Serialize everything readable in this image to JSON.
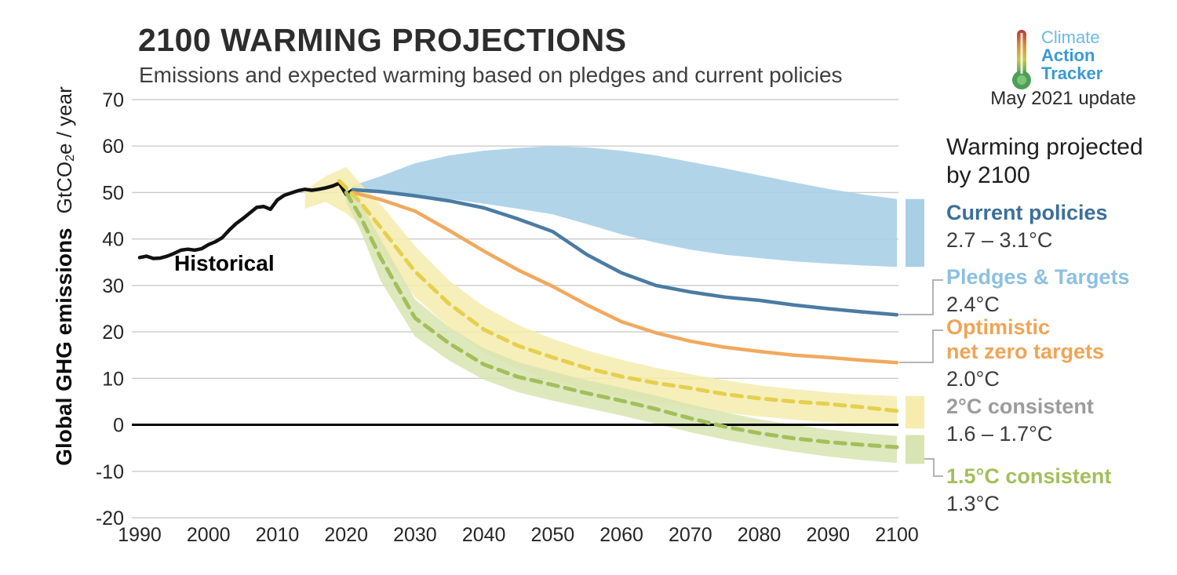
{
  "header": {
    "title": "2100 WARMING PROJECTIONS",
    "subtitle": "Emissions and expected warming based on pledges and current policies"
  },
  "logo": {
    "line1": "Climate",
    "line2": "Action",
    "line3": "Tracker",
    "line1_color": "#6cb9e6",
    "line23_color": "#3a9ad5",
    "update": "May 2021 update"
  },
  "axes": {
    "y_label_bold": "Global GHG emissions",
    "y_unit_pre": "GtCO",
    "y_unit_sub": "2",
    "y_unit_post": "e / year"
  },
  "annotations": {
    "historical": "Historical"
  },
  "legend": {
    "title": "Warming projected by 2100",
    "entries": [
      {
        "label": "Current policies",
        "value": "2.7 – 3.1°C",
        "color": "#3d6f99"
      },
      {
        "label": "Pledges & Targets",
        "value": "2.4°C",
        "color": "#8cc0e0"
      },
      {
        "label": "Optimistic net zero targets",
        "label_line1": "Optimistic",
        "label_line2": "net zero targets",
        "value": "2.0°C",
        "color": "#f0a455"
      },
      {
        "label": "2°C consistent",
        "value": "1.6 – 1.7°C",
        "color": "#9c9c9c"
      },
      {
        "label": "1.5°C consistent",
        "value": "1.3°C",
        "color": "#a3bf5b"
      }
    ]
  },
  "chart_data": {
    "type": "line",
    "title": "2100 WARMING PROJECTIONS",
    "subtitle": "Emissions and expected warming based on pledges and current policies",
    "xlabel": "",
    "ylabel": "Global GHG emissions GtCO2e / year",
    "xlim": [
      1990,
      2100
    ],
    "ylim": [
      -20,
      70
    ],
    "x_ticks": [
      1990,
      2000,
      2010,
      2020,
      2030,
      2040,
      2050,
      2060,
      2070,
      2080,
      2090,
      2100
    ],
    "y_ticks": [
      -20,
      -10,
      0,
      10,
      20,
      30,
      40,
      50,
      60,
      70
    ],
    "grid": true,
    "zero_line": true,
    "legend_position": "right",
    "bands": [
      {
        "name": "Current policies range",
        "color": "#a9cfe5",
        "opacity": 0.9,
        "x": [
          2021,
          2025,
          2030,
          2035,
          2040,
          2045,
          2050,
          2055,
          2060,
          2065,
          2070,
          2075,
          2080,
          2085,
          2090,
          2095,
          2100
        ],
        "upper": [
          51.5,
          53.5,
          56.3,
          58,
          59,
          59.6,
          60,
          59.7,
          59,
          58,
          56.6,
          55.2,
          53.7,
          52.2,
          50.8,
          49.6,
          48.6
        ],
        "lower": [
          50,
          50,
          49.4,
          48.6,
          47.6,
          46.5,
          45.3,
          43.2,
          41,
          39.2,
          37.7,
          36.6,
          35.9,
          35.2,
          34.7,
          34.3,
          34
        ]
      },
      {
        "name": "2°C consistent range",
        "color": "#f5ecae",
        "opacity": 0.85,
        "x": [
          2014,
          2017,
          2020,
          2022,
          2025,
          2030,
          2035,
          2040,
          2045,
          2050,
          2055,
          2060,
          2065,
          2070,
          2075,
          2080,
          2085,
          2090,
          2095,
          2100
        ],
        "upper": [
          50.5,
          53.5,
          55.5,
          52,
          47.5,
          38.5,
          31,
          25.5,
          21.5,
          18.5,
          16,
          14,
          12.3,
          10.9,
          9.6,
          8.5,
          7.7,
          7,
          6.5,
          6.2
        ],
        "lower": [
          46.5,
          48,
          45.5,
          43,
          37,
          27.5,
          21,
          15.5,
          12,
          9.5,
          7.6,
          6,
          4.7,
          3.6,
          2.6,
          1.8,
          1.1,
          0.5,
          0,
          -0.4
        ]
      },
      {
        "name": "1.5°C consistent range",
        "color": "#d8e4b2",
        "opacity": 0.85,
        "x": [
          2020,
          2022,
          2025,
          2030,
          2035,
          2040,
          2045,
          2050,
          2055,
          2060,
          2065,
          2070,
          2075,
          2080,
          2085,
          2090,
          2095,
          2100
        ],
        "upper": [
          51,
          48,
          40,
          27,
          21,
          16.5,
          13.5,
          11.5,
          9.6,
          8,
          6.3,
          4.4,
          2.7,
          1.2,
          0,
          -1,
          -1.8,
          -2.4
        ],
        "lower": [
          48,
          42,
          31,
          19,
          13.8,
          9.7,
          7,
          5.2,
          3.6,
          2,
          0.2,
          -1.6,
          -3.2,
          -4.6,
          -5.8,
          -6.8,
          -7.6,
          -8.2
        ]
      }
    ],
    "series": [
      {
        "name": "Historical",
        "color": "#111111",
        "dash": "solid",
        "width": 4.5,
        "x": [
          1990,
          1991,
          1992,
          1993,
          1994,
          1995,
          1996,
          1997,
          1998,
          1999,
          2000,
          2001,
          2002,
          2003,
          2004,
          2005,
          2006,
          2007,
          2008,
          2009,
          2010,
          2011,
          2012,
          2013,
          2014,
          2015,
          2016,
          2017,
          2018,
          2019,
          2020,
          2021
        ],
        "y": [
          36,
          36.3,
          35.8,
          35.9,
          36.3,
          36.9,
          37.6,
          37.8,
          37.6,
          37.9,
          38.8,
          39.4,
          40.3,
          41.9,
          43.3,
          44.4,
          45.6,
          46.8,
          47,
          46.4,
          48.4,
          49.4,
          49.9,
          50.4,
          50.7,
          50.5,
          50.7,
          51,
          51.4,
          52,
          49.6,
          50.6
        ]
      },
      {
        "name": "Pledges & Targets",
        "color": "#4a7ba3",
        "dash": "solid",
        "width": 4.5,
        "x": [
          2021,
          2025,
          2030,
          2035,
          2040,
          2045,
          2050,
          2055,
          2060,
          2065,
          2070,
          2075,
          2080,
          2085,
          2090,
          2095,
          2100
        ],
        "y": [
          50.6,
          50.2,
          49.3,
          48.2,
          46.7,
          44.3,
          41.6,
          36.6,
          32.7,
          30,
          28.6,
          27.5,
          26.8,
          25.8,
          25,
          24.3,
          23.7
        ]
      },
      {
        "name": "Optimistic net zero targets",
        "color": "#f1a95e",
        "dash": "solid",
        "width": 4.5,
        "x": [
          2021,
          2025,
          2030,
          2035,
          2040,
          2045,
          2050,
          2055,
          2060,
          2065,
          2070,
          2075,
          2080,
          2085,
          2090,
          2095,
          2100
        ],
        "y": [
          50,
          48.5,
          46,
          41.8,
          37.4,
          33.3,
          29.8,
          25.8,
          22.2,
          19.8,
          18,
          16.7,
          15.8,
          15,
          14.5,
          13.9,
          13.4
        ]
      },
      {
        "name": "2°C consistent",
        "color": "#e5cf4e",
        "dash": "dashed",
        "width": 5,
        "x": [
          2019,
          2020,
          2022,
          2025,
          2030,
          2035,
          2040,
          2045,
          2050,
          2055,
          2060,
          2065,
          2070,
          2075,
          2080,
          2085,
          2090,
          2095,
          2100
        ],
        "y": [
          52.5,
          51,
          48,
          42.5,
          33,
          26,
          20.5,
          17,
          14.5,
          12.2,
          10.4,
          9,
          7.9,
          6.6,
          5.7,
          5,
          4.5,
          3.8,
          3
        ]
      },
      {
        "name": "1.5°C consistent",
        "color": "#a3bf5b",
        "dash": "dashed",
        "width": 5,
        "x": [
          2020,
          2022,
          2025,
          2030,
          2035,
          2040,
          2045,
          2050,
          2055,
          2060,
          2065,
          2070,
          2075,
          2080,
          2085,
          2090,
          2095,
          2100
        ],
        "y": [
          50,
          45,
          36,
          23,
          17.5,
          13,
          10.3,
          8.6,
          6.8,
          5.2,
          3.4,
          1.4,
          -0.4,
          -1.8,
          -2.9,
          -3.7,
          -4.3,
          -4.8
        ]
      }
    ],
    "legend_bars": [
      {
        "name": "current-policies-range-bar",
        "color": "#a9cfe5",
        "from": 34,
        "to": 48.6
      },
      {
        "name": "two-degree-range-bar",
        "color": "#f5ecae",
        "from": -0.8,
        "to": 6.2
      },
      {
        "name": "one-point-five-degree-range-bar",
        "color": "#d8e4b2",
        "from": -8.4,
        "to": -2.2
      }
    ]
  }
}
